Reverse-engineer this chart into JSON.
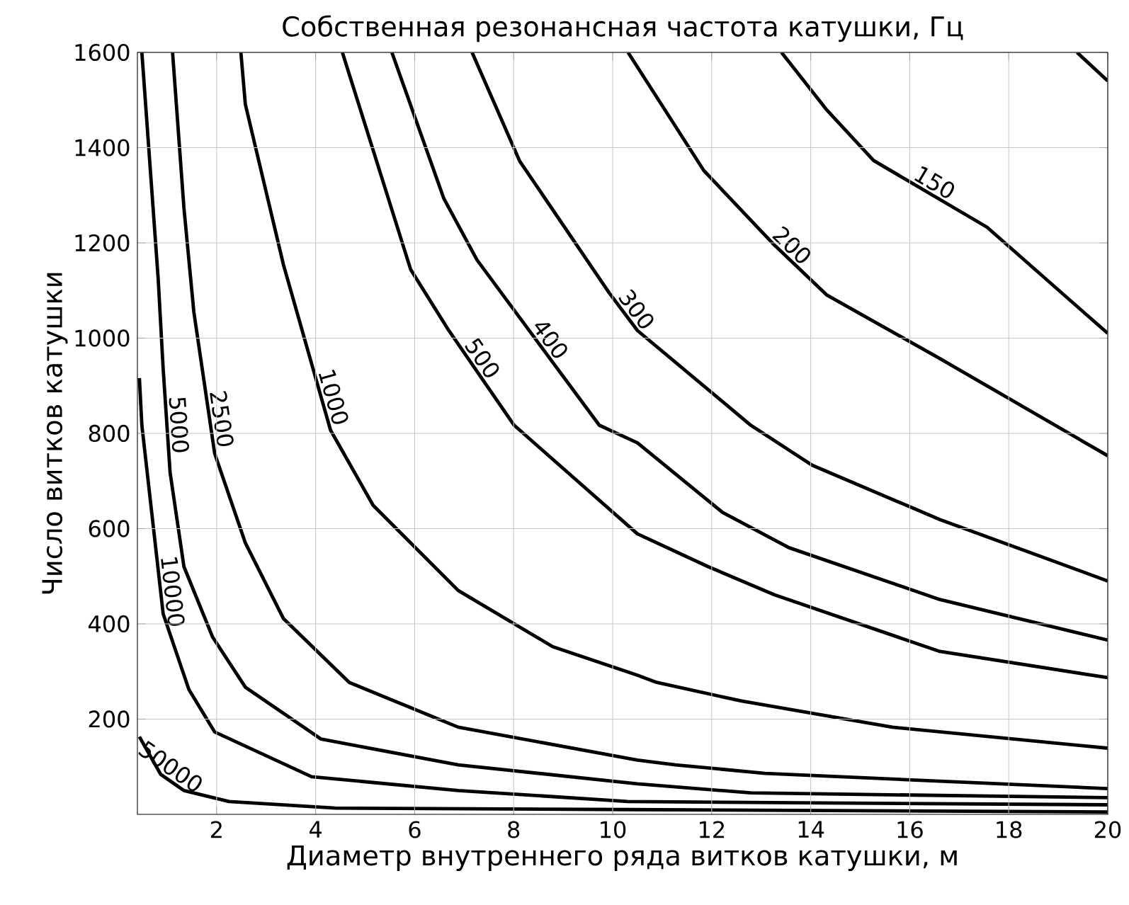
{
  "chart_data": {
    "type": "line",
    "title": "Собственная резонансная частота катушки, Гц",
    "xlabel": "Диаметр внутреннего ряда витков катушки, м",
    "ylabel": "Число витков катушки",
    "xlim": [
      0.4,
      20
    ],
    "ylim": [
      0,
      1600
    ],
    "xticks": [
      2,
      4,
      6,
      8,
      10,
      12,
      14,
      16,
      18,
      20
    ],
    "yticks": [
      200,
      400,
      600,
      800,
      1000,
      1200,
      1400,
      1600
    ],
    "grid": true,
    "line_style": "solid",
    "series": [
      {
        "name": "50000",
        "color": "#000000",
        "x": [
          0.44,
          0.87,
          1.34,
          2.25,
          4.4,
          10.31,
          20
        ],
        "values": [
          163,
          84,
          50,
          27,
          13,
          10,
          5
        ]
      },
      {
        "name": "10000",
        "color": "#000000",
        "x": [
          0.44,
          0.49,
          0.92,
          1.44,
          1.96,
          3.92,
          6.88,
          10.31,
          12.7,
          20
        ],
        "values": [
          916,
          817,
          421,
          262,
          173,
          79,
          50,
          27,
          25,
          20
        ]
      },
      {
        "name": "5000",
        "color": "#000000",
        "x": [
          0.49,
          0.82,
          0.92,
          1.06,
          1.34,
          1.92,
          2.58,
          4.11,
          6.88,
          10.5,
          12.79,
          20
        ],
        "values": [
          1600,
          1124,
          936,
          718,
          520,
          372,
          267,
          158,
          104,
          64,
          45,
          35
        ]
      },
      {
        "name": "2500",
        "color": "#000000",
        "x": [
          1.11,
          1.34,
          1.54,
          1.96,
          2.58,
          3.35,
          4.68,
          6.88,
          10.5,
          11.27,
          13.08,
          20
        ],
        "values": [
          1600,
          1273,
          1055,
          758,
          570,
          411,
          277,
          183,
          114,
          104,
          86,
          54
        ]
      },
      {
        "name": "1000",
        "color": "#000000",
        "x": [
          2.49,
          2.58,
          3.35,
          4.3,
          5.16,
          6.88,
          8.79,
          10.5,
          10.89,
          12.6,
          15.65,
          20
        ],
        "values": [
          1600,
          1491,
          1154,
          807,
          649,
          470,
          352,
          292,
          277,
          238,
          183,
          139
        ]
      },
      {
        "name": "500",
        "color": "#000000",
        "x": [
          4.54,
          5.92,
          6.69,
          8.01,
          10.5,
          11.93,
          13.27,
          16.61,
          20
        ],
        "values": [
          1600,
          1144,
          1016,
          817,
          589,
          520,
          461,
          342,
          287
        ]
      },
      {
        "name": "400",
        "color": "#000000",
        "x": [
          5.54,
          6.59,
          7.26,
          9.73,
          10.5,
          12.22,
          13.56,
          16.61,
          20
        ],
        "values": [
          1600,
          1293,
          1164,
          817,
          780,
          634,
          560,
          451,
          366
        ]
      },
      {
        "name": "300",
        "color": "#000000",
        "x": [
          7.16,
          8.12,
          9.93,
          10.5,
          12.79,
          14.03,
          16.61,
          20
        ],
        "values": [
          1600,
          1372,
          1095,
          1016,
          817,
          733,
          619,
          490
        ]
      },
      {
        "name": "200",
        "color": "#000000",
        "x": [
          10.31,
          11.84,
          13.27,
          14.32,
          16.61,
          20
        ],
        "values": [
          1600,
          1352,
          1195,
          1091,
          957,
          753
        ]
      },
      {
        "name": "150",
        "color": "#000000",
        "x": [
          13.41,
          14.31,
          15.27,
          17.56,
          20
        ],
        "values": [
          1600,
          1481,
          1373,
          1233,
          1010
        ]
      },
      {
        "color": "#000000",
        "x": [
          19.38,
          20
        ],
        "values": [
          1600,
          1540
        ]
      }
    ]
  }
}
